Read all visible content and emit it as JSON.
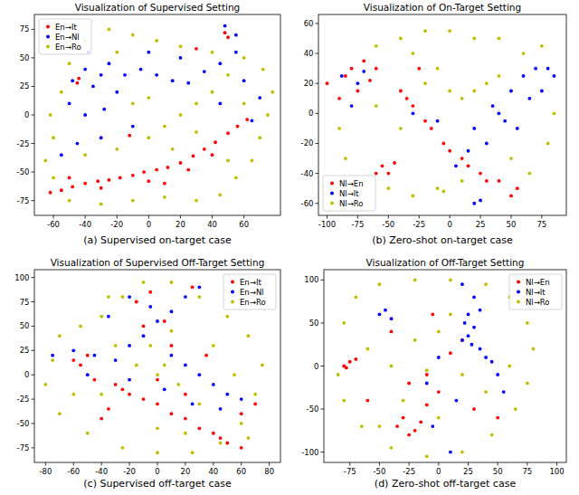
{
  "chart_data": [
    {
      "type": "scatter",
      "title": "Visualization of Supervised Setting",
      "caption": "(a) Supervised on-target case",
      "xlim": [
        -72,
        83
      ],
      "ylim": [
        -88,
        88
      ],
      "xticks": [
        -60,
        -40,
        -20,
        0,
        20,
        40,
        60
      ],
      "yticks": [
        -75,
        -50,
        -25,
        0,
        25,
        50,
        75
      ],
      "grid": false,
      "legend": "upper left",
      "series": [
        {
          "name": "En→It",
          "color": "#ff0000",
          "x": [
            -62,
            -55,
            -48,
            -40,
            -32,
            -25,
            -18,
            -10,
            -3,
            5,
            12,
            20,
            28,
            35,
            42,
            50,
            56,
            62,
            -30,
            0,
            25,
            -45,
            -44,
            -12,
            48,
            50,
            30,
            10,
            -50,
            40
          ],
          "values": [
            -68,
            -66,
            -63,
            -60,
            -58,
            -57,
            -55,
            -53,
            -50,
            -48,
            -46,
            -42,
            -36,
            -30,
            -24,
            -16,
            -10,
            -4,
            -64,
            -58,
            -48,
            28,
            32,
            -18,
            72,
            68,
            58,
            -60,
            -55,
            -35
          ]
        },
        {
          "name": "En→Nl",
          "color": "#0000ff",
          "x": [
            -48,
            -40,
            -35,
            -30,
            -25,
            -38,
            -20,
            -28,
            -40,
            -50,
            -15,
            -5,
            5,
            15,
            25,
            35,
            45,
            55,
            60,
            70,
            65,
            45,
            -10,
            -30,
            -45,
            55,
            48,
            0,
            -55,
            20
          ],
          "values": [
            30,
            40,
            25,
            35,
            45,
            55,
            20,
            5,
            0,
            10,
            35,
            40,
            35,
            30,
            28,
            38,
            45,
            55,
            30,
            15,
            -5,
            10,
            -10,
            -20,
            -25,
            70,
            78,
            55,
            -35,
            50
          ]
        },
        {
          "name": "En→Ro",
          "color": "#bfbf00",
          "x": [
            -65,
            -60,
            -62,
            -55,
            -50,
            -40,
            -25,
            -10,
            5,
            20,
            40,
            60,
            72,
            78,
            75,
            70,
            65,
            55,
            45,
            30,
            10,
            -10,
            -30,
            -50,
            -40,
            -20,
            0,
            10,
            20,
            30,
            40,
            50,
            -10,
            -20,
            0,
            60,
            -60,
            15,
            30,
            50
          ],
          "values": [
            -40,
            -20,
            0,
            20,
            45,
            65,
            75,
            70,
            65,
            60,
            55,
            50,
            40,
            20,
            0,
            -20,
            -40,
            -55,
            -70,
            -75,
            -72,
            -75,
            -78,
            -75,
            -35,
            -30,
            -20,
            -10,
            0,
            10,
            20,
            35,
            10,
            55,
            15,
            10,
            -55,
            -30,
            -15,
            -40
          ]
        }
      ]
    },
    {
      "type": "scatter",
      "title": "Visualization of On-Target Setting",
      "caption": "(b) Zero-shot on-target case",
      "xlim": [
        -107,
        95
      ],
      "ylim": [
        -68,
        66
      ],
      "xticks": [
        -100,
        -75,
        -50,
        -25,
        0,
        25,
        50,
        75
      ],
      "yticks": [
        -60,
        -40,
        -20,
        0,
        20,
        40,
        60
      ],
      "grid": false,
      "legend": "lower left",
      "series": [
        {
          "name": "Nl→En",
          "color": "#ff0000",
          "x": [
            -90,
            -85,
            -80,
            -60,
            -75,
            -65,
            -40,
            -30,
            -15,
            0,
            15,
            30,
            -25,
            -50,
            -45,
            -100,
            50,
            -70,
            -35,
            -20,
            -5,
            10,
            25,
            40,
            55,
            -60,
            -55
          ],
          "values": [
            10,
            25,
            30,
            30,
            15,
            22,
            15,
            5,
            -10,
            -25,
            -35,
            -45,
            30,
            -40,
            -33,
            20,
            -55,
            35,
            10,
            -5,
            -20,
            -30,
            -40,
            -45,
            -50,
            -40,
            -35
          ]
        },
        {
          "name": "Nl→It",
          "color": "#0000ff",
          "x": [
            -80,
            -75,
            -88,
            -70,
            20,
            35,
            50,
            60,
            70,
            80,
            45,
            30,
            15,
            5,
            25,
            20,
            65,
            75,
            55,
            40,
            -30,
            -10,
            85
          ],
          "values": [
            5,
            20,
            25,
            28,
            -10,
            5,
            15,
            25,
            30,
            30,
            -5,
            -20,
            -25,
            -35,
            -58,
            -60,
            10,
            15,
            -10,
            0,
            0,
            -5,
            25
          ]
        },
        {
          "name": "Nl→Ro",
          "color": "#bfbf00",
          "x": [
            -90,
            -85,
            -70,
            -50,
            -30,
            -10,
            10,
            -60,
            -40,
            -20,
            0,
            20,
            40,
            60,
            75,
            85,
            80,
            65,
            -40,
            -20,
            0,
            10,
            20,
            30,
            40,
            -5,
            -10,
            -60,
            -30,
            50
          ],
          "values": [
            -10,
            -30,
            -45,
            -50,
            -55,
            -50,
            -45,
            45,
            50,
            55,
            55,
            50,
            50,
            40,
            45,
            0,
            -20,
            -40,
            -10,
            20,
            15,
            10,
            15,
            20,
            25,
            -52,
            30,
            5,
            40,
            -30
          ]
        }
      ]
    },
    {
      "type": "scatter",
      "title": "Visualization of Supervised Off-Target Setting",
      "caption": "(c) Supervised off-target case",
      "xlim": [
        -88,
        88
      ],
      "ylim": [
        -90,
        108
      ],
      "xticks": [
        -80,
        -60,
        -40,
        -20,
        0,
        20,
        40,
        60,
        80
      ],
      "yticks": [
        -75,
        -50,
        -25,
        0,
        25,
        50,
        75,
        100
      ],
      "grid": false,
      "legend": "upper right",
      "series": [
        {
          "name": "En→It",
          "color": "#ff0000",
          "x": [
            -60,
            -30,
            -10,
            10,
            30,
            50,
            60,
            -20,
            0,
            20,
            40,
            -45,
            -35,
            -40,
            20,
            -10,
            5,
            -15,
            60,
            70,
            0,
            -50,
            -55,
            25,
            45,
            10,
            -25,
            35,
            -5
          ],
          "values": [
            15,
            -10,
            -25,
            -40,
            -55,
            -70,
            -75,
            -20,
            -30,
            -45,
            -60,
            -5,
            -35,
            -45,
            -20,
            50,
            55,
            75,
            -40,
            -30,
            -5,
            20,
            10,
            90,
            -65,
            30,
            -15,
            20,
            85
          ]
        },
        {
          "name": "En→Nl",
          "color": "#0000ff",
          "x": [
            -75,
            -60,
            -45,
            -30,
            -20,
            -10,
            0,
            10,
            20,
            30,
            20,
            30,
            40,
            50,
            60,
            -20,
            -5,
            -35,
            -20,
            10,
            25,
            -50,
            5,
            45
          ],
          "values": [
            20,
            25,
            20,
            15,
            30,
            40,
            55,
            65,
            80,
            90,
            10,
            0,
            -10,
            -20,
            -25,
            80,
            70,
            60,
            -5,
            20,
            -30,
            0,
            -15,
            -35
          ]
        },
        {
          "name": "En→Ro",
          "color": "#bfbf00",
          "x": [
            -70,
            -55,
            -40,
            -25,
            -10,
            10,
            30,
            50,
            65,
            75,
            70,
            60,
            45,
            25,
            0,
            -25,
            -50,
            -70,
            -80,
            -75,
            -30,
            -15,
            0,
            15,
            30,
            -5,
            10,
            40,
            -40,
            20,
            55,
            -60,
            0,
            -35,
            65,
            5
          ],
          "values": [
            40,
            50,
            60,
            80,
            95,
            95,
            80,
            60,
            40,
            10,
            -20,
            -50,
            -70,
            -80,
            -80,
            -75,
            -60,
            -40,
            -10,
            15,
            30,
            10,
            0,
            -10,
            -30,
            30,
            45,
            30,
            -20,
            -60,
            0,
            -20,
            -55,
            80,
            -65,
            10
          ]
        }
      ]
    },
    {
      "type": "scatter",
      "title": "Visualization of Off-Target Setting",
      "caption": "(d) Zero-shot off-target case",
      "xlim": [
        -97,
        108
      ],
      "ylim": [
        -112,
        112
      ],
      "xticks": [
        -75,
        -50,
        -25,
        0,
        25,
        50,
        75,
        100
      ],
      "yticks": [
        -100,
        -50,
        0,
        50,
        100
      ],
      "grid": false,
      "legend": "upper right",
      "series": [
        {
          "name": "Nl→En",
          "color": "#ff0000",
          "x": [
            -80,
            -75,
            -78,
            -70,
            -35,
            -30,
            -25,
            -20,
            -15,
            -25,
            -10,
            0,
            10,
            20,
            -40,
            -5,
            50,
            -10,
            30,
            -60
          ],
          "values": [
            0,
            5,
            -2,
            8,
            -70,
            -60,
            -80,
            -75,
            -65,
            -20,
            -10,
            -30,
            15,
            30,
            40,
            60,
            -60,
            -45,
            -50,
            -40
          ]
        },
        {
          "name": "Nl→It",
          "color": "#0000ff",
          "x": [
            20,
            25,
            30,
            25,
            35,
            30,
            20,
            40,
            50,
            55,
            -50,
            -45,
            -40,
            0,
            -10,
            -5,
            15,
            10,
            35,
            45,
            22,
            28
          ],
          "values": [
            30,
            35,
            45,
            60,
            65,
            80,
            95,
            10,
            -10,
            -30,
            60,
            65,
            55,
            10,
            -20,
            -70,
            -40,
            -100,
            20,
            5,
            50,
            25
          ]
        },
        {
          "name": "Nl→Ro",
          "color": "#bfbf00",
          "x": [
            -80,
            -70,
            -50,
            -20,
            10,
            40,
            60,
            75,
            80,
            75,
            65,
            45,
            20,
            -10,
            -40,
            -65,
            -80,
            -85,
            -60,
            -40,
            -20,
            0,
            20,
            0,
            40,
            -30,
            60,
            -50,
            10,
            -10
          ],
          "values": [
            50,
            80,
            95,
            100,
            100,
            95,
            80,
            50,
            20,
            -20,
            -50,
            -80,
            -100,
            -105,
            -95,
            -70,
            -40,
            -10,
            20,
            0,
            30,
            40,
            -10,
            -60,
            -30,
            -40,
            0,
            -70,
            60,
            -5
          ]
        }
      ]
    }
  ]
}
